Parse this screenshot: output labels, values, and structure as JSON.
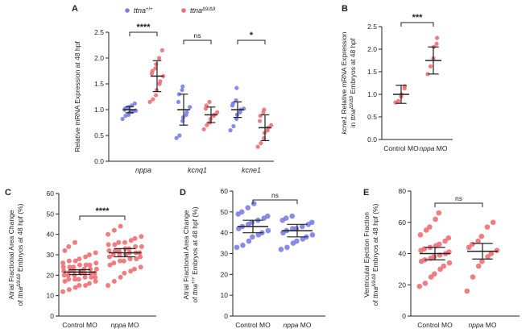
{
  "colors": {
    "wt": "#7B80E6",
    "mut": "#EE6F73",
    "axis": "#222222"
  },
  "chart_data": [
    {
      "panel": "A",
      "type": "scatter",
      "ylabel": "Relative mRNA Expression at 48 hpf",
      "ylim": [
        0,
        2.5
      ],
      "yticks": [
        "0.0",
        "0.5",
        "1.0",
        "1.5",
        "2.0",
        "2.5"
      ],
      "categories": [
        "nppa",
        "kcnq1",
        "kcne1"
      ],
      "legend": {
        "placement": "top",
        "items": [
          {
            "label": "ttna",
            "sup": "+/+",
            "color": "wt"
          },
          {
            "label": "ttna",
            "sup": "Δ9/Δ9",
            "color": "mut"
          }
        ]
      },
      "significance": [
        "****",
        "ns",
        "*"
      ],
      "series": [
        {
          "color": "wt",
          "mean": [
            1.0,
            1.0,
            1.0
          ],
          "sd": [
            0.06,
            0.3,
            0.15
          ],
          "points": [
            [
              0.82,
              0.88,
              0.9,
              0.94,
              0.96,
              0.97,
              0.98,
              1.0,
              1.02,
              1.03,
              1.05,
              1.08,
              1.12
            ],
            [
              0.45,
              0.5,
              0.78,
              0.85,
              0.9,
              0.95,
              1.05,
              1.15,
              1.3,
              1.38,
              1.45
            ],
            [
              0.6,
              0.68,
              0.82,
              0.9,
              0.95,
              1.0,
              1.02,
              1.08,
              1.12,
              1.18,
              1.42
            ]
          ]
        },
        {
          "color": "mut",
          "mean": [
            1.65,
            0.9,
            0.65
          ],
          "sd": [
            0.3,
            0.15,
            0.25
          ],
          "points": [
            [
              1.15,
              1.2,
              1.28,
              1.38,
              1.5,
              1.55,
              1.65,
              1.7,
              1.75,
              1.8,
              1.88,
              2.0,
              2.15
            ],
            [
              0.62,
              0.7,
              0.75,
              0.82,
              0.88,
              0.9,
              0.95,
              1.02,
              1.08,
              1.15
            ],
            [
              0.28,
              0.35,
              0.45,
              0.55,
              0.6,
              0.65,
              0.7,
              0.78,
              0.88,
              0.95,
              1.0
            ]
          ]
        }
      ]
    },
    {
      "panel": "B",
      "type": "scatter",
      "ylabel_line1": "kcne1 Relative mRNA Expression",
      "ylabel_line2": "in ttnaΔ9/Δ9 Embryos at 48 hpf",
      "ylim": [
        0,
        2.5
      ],
      "yticks": [
        "0.0",
        "0.5",
        "1.0",
        "1.5",
        "2.0",
        "2.5"
      ],
      "categories": [
        "Control MO",
        "nppa MO"
      ],
      "significance": "***",
      "groups": [
        {
          "color": "mut",
          "mean": 1.0,
          "sd": 0.2,
          "points": [
            0.82,
            0.85,
            0.95,
            1.0,
            1.13,
            1.18
          ]
        },
        {
          "color": "mut",
          "mean": 1.75,
          "sd": 0.3,
          "points": [
            1.45,
            1.62,
            1.8,
            2.05,
            2.12,
            2.25
          ]
        }
      ]
    },
    {
      "panel": "C",
      "type": "scatter",
      "ylabel_line1": "Atrial Fractional Area Change",
      "ylabel_line2": "of ttnaΔ9/Δ9 Embryos at 48 hpf (%)",
      "ylim": [
        0,
        60
      ],
      "yticks": [
        "0",
        "10",
        "20",
        "30",
        "40",
        "50",
        "60"
      ],
      "categories": [
        "Control MO",
        "nppa MO"
      ],
      "significance": "****",
      "groups": [
        {
          "color": "mut",
          "mean": 21.5,
          "sd": 1.2,
          "points": [
            12,
            13,
            14,
            15,
            15,
            16,
            17,
            17,
            18,
            18,
            18,
            19,
            19,
            19,
            20,
            20,
            20,
            21,
            21,
            21,
            21,
            22,
            22,
            22,
            22,
            23,
            23,
            23,
            24,
            24,
            24,
            25,
            25,
            25,
            26,
            26,
            27,
            27,
            28,
            29,
            30,
            31,
            32,
            34,
            36
          ]
        },
        {
          "color": "mut",
          "mean": 31,
          "sd": 2.0,
          "points": [
            15,
            17,
            19,
            21,
            22,
            23,
            24,
            25,
            26,
            27,
            27,
            28,
            28,
            29,
            29,
            30,
            30,
            30,
            31,
            31,
            31,
            32,
            32,
            32,
            33,
            33,
            34,
            34,
            35,
            35,
            36,
            36,
            37,
            38,
            39,
            40,
            42,
            44
          ]
        }
      ]
    },
    {
      "panel": "D",
      "type": "scatter",
      "ylabel_line1": "Atrial Fractional Area Change",
      "ylabel_line2": "of ttna+/+ Embryos at 48 hpf (%)",
      "ylim": [
        0,
        60
      ],
      "yticks": [
        "0",
        "10",
        "20",
        "30",
        "40",
        "50",
        "60"
      ],
      "categories": [
        "Control MO",
        "nppa MO"
      ],
      "significance": "ns",
      "groups": [
        {
          "color": "wt",
          "mean": 43,
          "sd": 3.0,
          "points": [
            33,
            34,
            36,
            38,
            39,
            40,
            41,
            42,
            43,
            44,
            45,
            46,
            47,
            48,
            49,
            50,
            52,
            54
          ]
        },
        {
          "color": "wt",
          "mean": 41,
          "sd": 3.0,
          "points": [
            32,
            33,
            35,
            36,
            37,
            38,
            39,
            40,
            41,
            42,
            42,
            43,
            44,
            45,
            46,
            47,
            48
          ]
        }
      ]
    },
    {
      "panel": "E",
      "type": "scatter",
      "ylabel_line1": "Ventricular Ejection Fraction",
      "ylabel_line2": "of ttnaΔ9/Δ9 Embryos at 48 hpf (%)",
      "ylim": [
        0,
        80
      ],
      "yticks": [
        "0",
        "20",
        "40",
        "60",
        "80"
      ],
      "categories": [
        "Control MO",
        "nppa MO"
      ],
      "significance": "ns",
      "groups": [
        {
          "color": "mut",
          "mean": 40,
          "sd": 4.0,
          "points": [
            19,
            21,
            25,
            27,
            30,
            32,
            34,
            35,
            36,
            37,
            38,
            39,
            40,
            41,
            42,
            43,
            44,
            45,
            46,
            48,
            50,
            52,
            55,
            57,
            62,
            66
          ]
        },
        {
          "color": "mut",
          "mean": 41.5,
          "sd": 5.0,
          "points": [
            16,
            25,
            32,
            35,
            38,
            40,
            42,
            44,
            46,
            48,
            51,
            57,
            60
          ]
        }
      ]
    }
  ],
  "panel_labels": [
    "A",
    "B",
    "C",
    "D",
    "E"
  ]
}
